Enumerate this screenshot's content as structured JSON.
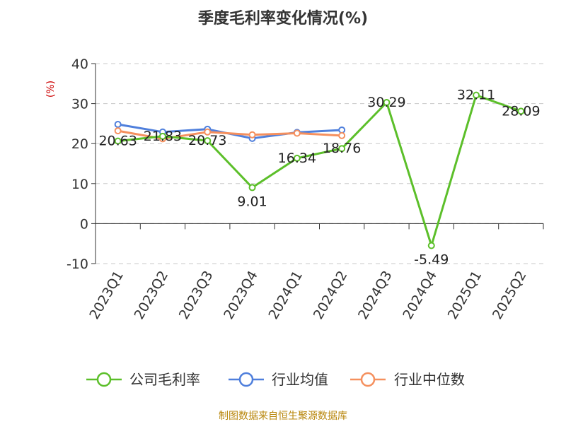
{
  "chart_data": {
    "type": "line",
    "title": "季度毛利率变化情况(%)",
    "ylabel": "(%)",
    "categories": [
      "2023Q1",
      "2023Q2",
      "2023Q3",
      "2023Q4",
      "2024Q1",
      "2024Q2",
      "2024Q3",
      "2024Q4",
      "2025Q1",
      "2025Q2"
    ],
    "ylim": [
      -10,
      40
    ],
    "yticks": [
      -10,
      0,
      10,
      20,
      30,
      40
    ],
    "grid": "horizontal-dashed",
    "legend_position": "bottom",
    "series": [
      {
        "name": "公司毛利率",
        "color": "#5cbf2a",
        "values": [
          20.63,
          21.83,
          20.73,
          9.01,
          16.34,
          18.76,
          30.29,
          -5.49,
          32.11,
          28.09
        ],
        "labels": [
          "20.63",
          "21.83",
          "20.73",
          "9.01",
          "16.34",
          "18.76",
          "30.29",
          "-5.49",
          "32.11",
          "28.09"
        ]
      },
      {
        "name": "行业均值",
        "color": "#4f7fdc",
        "values": [
          24.8,
          22.9,
          23.6,
          21.3,
          22.8,
          23.4,
          null,
          null,
          null,
          null
        ]
      },
      {
        "name": "行业中位数",
        "color": "#f5905e",
        "values": [
          23.2,
          21.2,
          22.9,
          22.2,
          22.6,
          22.0,
          null,
          null,
          null,
          null
        ]
      }
    ]
  },
  "source": "制图数据来自恒生聚源数据库"
}
